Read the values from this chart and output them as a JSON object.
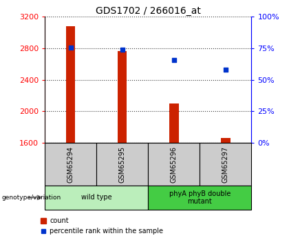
{
  "title": "GDS1702 / 266016_at",
  "categories": [
    "GSM65294",
    "GSM65295",
    "GSM65296",
    "GSM65297"
  ],
  "counts": [
    3075,
    2760,
    2100,
    1660
  ],
  "percentiles": [
    75.5,
    74.0,
    65.5,
    58.0
  ],
  "ylim_left": [
    1600,
    3200
  ],
  "ylim_right": [
    0,
    100
  ],
  "yticks_left": [
    1600,
    2000,
    2400,
    2800,
    3200
  ],
  "yticks_right": [
    0,
    25,
    50,
    75,
    100
  ],
  "bar_color": "#cc2200",
  "dot_color": "#0033cc",
  "bar_width": 0.18,
  "groups": [
    {
      "label": "wild type",
      "indices": [
        0,
        1
      ],
      "color": "#bbeebb"
    },
    {
      "label": "phyA phyB double\nmutant",
      "indices": [
        2,
        3
      ],
      "color": "#44cc44"
    }
  ],
  "genotype_label": "genotype/variation",
  "legend_count_label": "count",
  "legend_percentile_label": "percentile rank within the sample",
  "title_fontsize": 10,
  "tick_fontsize": 8,
  "gsm_fontsize": 7,
  "grp_fontsize": 7,
  "legend_fontsize": 7
}
